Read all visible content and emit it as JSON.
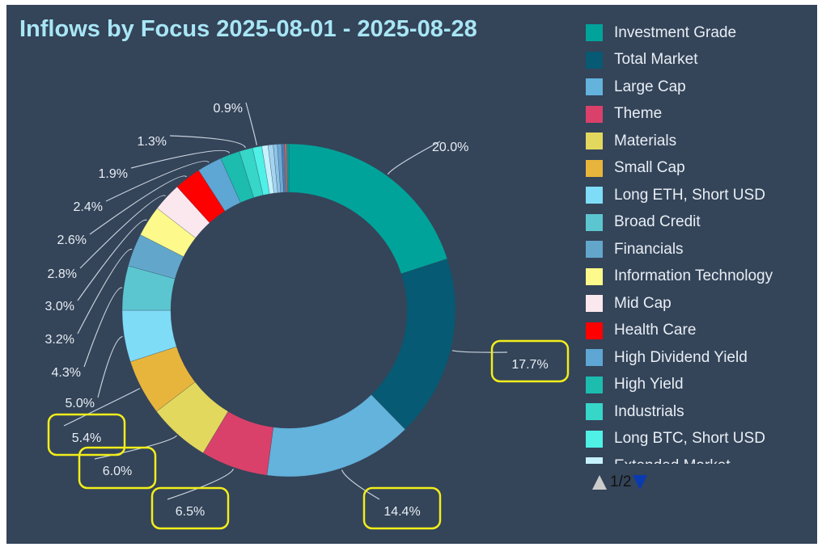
{
  "chart_data": {
    "type": "pie",
    "subtype": "donut",
    "title": "Inflows by Focus 2025-08-01 - 2025-08-28",
    "legend_position": "right",
    "legend_page": "1/2",
    "slices": [
      {
        "name": "Investment Grade",
        "value": 20.0,
        "label": "20.0%",
        "color": "#00a39a",
        "highlighted": false
      },
      {
        "name": "Total Market",
        "value": 17.7,
        "label": "17.7%",
        "color": "#075a73",
        "highlighted": true
      },
      {
        "name": "Large Cap",
        "value": 14.4,
        "label": "14.4%",
        "color": "#63b3dc",
        "highlighted": true
      },
      {
        "name": "Theme",
        "value": 6.5,
        "label": "6.5%",
        "color": "#d9416a",
        "highlighted": true
      },
      {
        "name": "Materials",
        "value": 6.0,
        "label": "6.0%",
        "color": "#e3d85e",
        "highlighted": true
      },
      {
        "name": "Small Cap",
        "value": 5.4,
        "label": "5.4%",
        "color": "#e8b53c",
        "highlighted": true
      },
      {
        "name": "Long ETH, Short USD",
        "value": 5.0,
        "label": "5.0%",
        "color": "#7fdcf7",
        "highlighted": false
      },
      {
        "name": "Broad Credit",
        "value": 4.3,
        "label": "4.3%",
        "color": "#5cc6d0",
        "highlighted": false
      },
      {
        "name": "Financials",
        "value": 3.2,
        "label": "3.2%",
        "color": "#62a7cb",
        "highlighted": false
      },
      {
        "name": "Information Technology",
        "value": 3.0,
        "label": "3.0%",
        "color": "#fdf98a",
        "highlighted": false
      },
      {
        "name": "Mid Cap",
        "value": 2.8,
        "label": "2.8%",
        "color": "#fae8ee",
        "highlighted": false
      },
      {
        "name": "Health Care",
        "value": 2.6,
        "label": "2.6%",
        "color": "#ff0000",
        "highlighted": false
      },
      {
        "name": "High Dividend Yield",
        "value": 2.4,
        "label": "2.4%",
        "color": "#5ea6d3",
        "highlighted": false
      },
      {
        "name": "High Yield",
        "value": 1.9,
        "label": "1.9%",
        "color": "#1cbcaf",
        "highlighted": false
      },
      {
        "name": "Industrials",
        "value": 1.3,
        "label": "1.3%",
        "color": "#36d6c8",
        "highlighted": false
      },
      {
        "name": "Long BTC, Short USD",
        "value": 0.9,
        "label": "0.9%",
        "color": "#4ff0e6",
        "highlighted": false
      },
      {
        "name": "Extended Market",
        "value": 0.6,
        "label": "",
        "color": "#c6f2fd",
        "highlighted": false
      },
      {
        "name": "",
        "value": 0.5,
        "label": "",
        "color": "#a4d4ef",
        "highlighted": false
      },
      {
        "name": "",
        "value": 0.4,
        "label": "",
        "color": "#8cc3e6",
        "highlighted": false
      },
      {
        "name": "",
        "value": 0.4,
        "label": "",
        "color": "#6fa8d6",
        "highlighted": false
      },
      {
        "name": "",
        "value": 0.3,
        "label": "",
        "color": "#4b7fb0",
        "highlighted": false
      },
      {
        "name": "",
        "value": 0.2,
        "label": "",
        "color": "#e26060",
        "highlighted": false
      },
      {
        "name": "",
        "value": 0.2,
        "label": "",
        "color": "#00a39a",
        "highlighted": false
      }
    ],
    "highlight_color": "#f2ee1a",
    "leader_color": "#c8d2dc"
  }
}
